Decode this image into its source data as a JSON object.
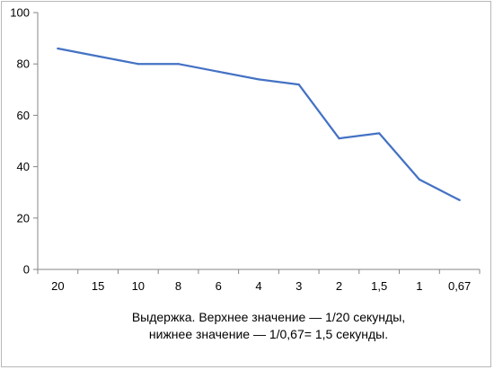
{
  "chart_data": {
    "type": "line",
    "categories": [
      "20",
      "15",
      "10",
      "8",
      "6",
      "4",
      "3",
      "2",
      "1,5",
      "1",
      "0,67"
    ],
    "series": [
      {
        "values": [
          86,
          83,
          80,
          80,
          77,
          74,
          72,
          51,
          53,
          35,
          27
        ]
      }
    ],
    "ylim": [
      0,
      100
    ],
    "yticks": [
      0,
      20,
      40,
      60,
      80,
      100
    ],
    "line_color": "#4472c4",
    "axis_color": "#868686",
    "grid": false,
    "legend": "none",
    "xlabel_line1": "Выдержка. Верхнее значение — 1/20 секунды,",
    "xlabel_line2": "нижнее значение — 1/0,67= 1,5 секунды."
  }
}
